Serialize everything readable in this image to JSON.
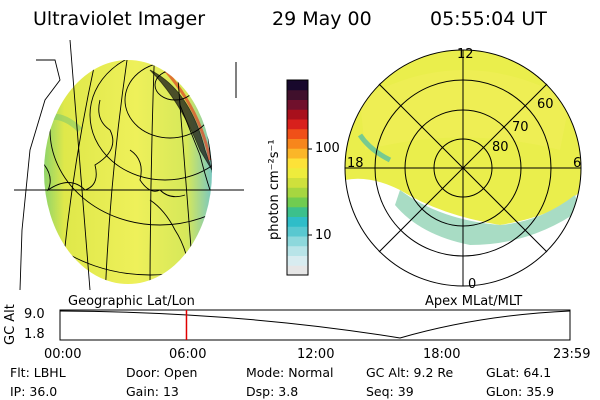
{
  "header": {
    "instrument": "Ultraviolet Imager",
    "date": "29 May 00",
    "time": "05:55:04 UT"
  },
  "colorbar": {
    "unit_label": "photon cm⁻²s⁻¹",
    "ticks": [
      "100",
      "10"
    ],
    "colors": [
      "#e6e6e6",
      "#d8ecf0",
      "#b8e4e8",
      "#8dd8dc",
      "#59c8d0",
      "#2fbdc8",
      "#3cc08c",
      "#70cc50",
      "#a6d640",
      "#cfe03c",
      "#eeec3c",
      "#fde238",
      "#fbb628",
      "#f7861c",
      "#f05018",
      "#d8201c",
      "#a8101c",
      "#70102c",
      "#40102c",
      "#18082c"
    ]
  },
  "maps": {
    "left_label": "Geographic Lat/Lon",
    "right_label": "Apex MLat/MLT",
    "mlt_labels": [
      "12",
      "18",
      "6",
      "0"
    ],
    "mlat_labels": [
      "60",
      "70",
      "80"
    ]
  },
  "altitude_plot": {
    "label": "GC Alt",
    "y_ticks": [
      "9.0",
      "1.8"
    ],
    "x_ticks": [
      "00:00",
      "06:00",
      "12:00",
      "18:00",
      "23:59"
    ],
    "current_time_fraction": 0.248,
    "marker_color": "#e00000"
  },
  "status": {
    "row1": [
      {
        "label": "Flt:",
        "value": "LBHL"
      },
      {
        "label": "Door:",
        "value": "Open"
      },
      {
        "label": "Mode:",
        "value": "Normal"
      },
      {
        "label": "GC Alt:",
        "value": "9.2 Re"
      },
      {
        "label": "GLat:",
        "value": "64.1"
      }
    ],
    "row2": [
      {
        "label": "IP:",
        "value": "36.0"
      },
      {
        "label": "Gain:",
        "value": "13"
      },
      {
        "label": "Dsp:",
        "value": "3.8"
      },
      {
        "label": "Seq:",
        "value": "39"
      },
      {
        "label": "GLon:",
        "value": "35.9"
      }
    ]
  }
}
